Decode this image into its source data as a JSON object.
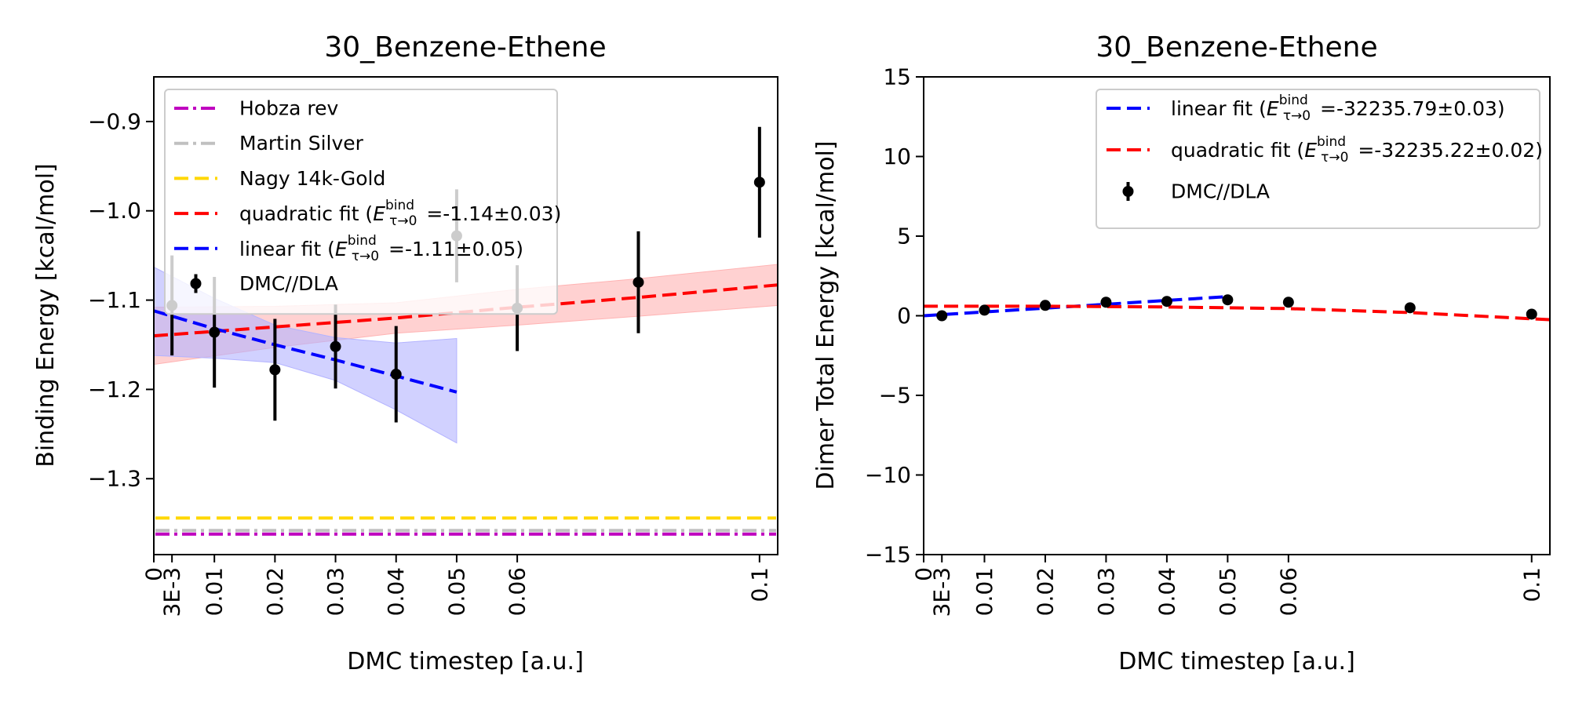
{
  "figure": {
    "background": "#ffffff"
  },
  "chart_data": [
    {
      "type": "scatter",
      "title": "30_Benzene-Ethene",
      "xlabel": "DMC timestep [a.u.]",
      "ylabel": "Binding Energy [kcal/mol]",
      "xlim": [
        0,
        0.103
      ],
      "ylim": [
        -1.385,
        -0.85
      ],
      "x_ticks": [
        0,
        0.003,
        0.01,
        0.02,
        0.03,
        0.04,
        0.05,
        0.06,
        0.1
      ],
      "x_tick_labels": [
        "0",
        "3E-3",
        "0.01",
        "0.02",
        "0.03",
        "0.04",
        "0.05",
        "0.06",
        "0.1"
      ],
      "y_ticks": [
        -1.3,
        -1.2,
        -1.1,
        -1.0,
        -0.9
      ],
      "y_tick_labels": [
        "−1.3",
        "−1.2",
        "−1.1",
        "−1.0",
        "−0.9"
      ],
      "grid": false,
      "legend_position": "upper-left",
      "series": [
        {
          "name": "DMC//DLA",
          "kind": "errorbar",
          "color": "#000000",
          "x": [
            0.003,
            0.01,
            0.02,
            0.03,
            0.04,
            0.05,
            0.06,
            0.08,
            0.1
          ],
          "y": [
            -1.106,
            -1.136,
            -1.178,
            -1.152,
            -1.183,
            -1.028,
            -1.109,
            -1.08,
            -0.968
          ],
          "err": [
            0.056,
            0.062,
            0.057,
            0.047,
            0.054,
            0.052,
            0.048,
            0.057,
            0.062
          ]
        },
        {
          "name": "quadratic fit ($E^{bind}_{τ→0}$ =-1.14±0.03)",
          "legend_prefix": "quadratic fit (",
          "legend_value": " =-1.14±0.03)",
          "kind": "fit",
          "color": "#ff0000",
          "x": [
            0,
            0.02,
            0.04,
            0.06,
            0.08,
            0.103
          ],
          "y": [
            -1.14,
            -1.13,
            -1.12,
            -1.108,
            -1.097,
            -1.083
          ],
          "band_lower": [
            -1.172,
            -1.153,
            -1.137,
            -1.128,
            -1.118,
            -1.106
          ],
          "band_upper": [
            -1.108,
            -1.107,
            -1.103,
            -1.088,
            -1.076,
            -1.06
          ],
          "band_color": "#ffb3b3"
        },
        {
          "name": "linear fit ($E^{bind}_{τ→0}$ =-1.11±0.05)",
          "legend_prefix": "linear fit (",
          "legend_value": " =-1.11±0.05)",
          "kind": "fit",
          "color": "#0000ff",
          "x": [
            0,
            0.01,
            0.02,
            0.03,
            0.04,
            0.05
          ],
          "y": [
            -1.112,
            -1.132,
            -1.15,
            -1.167,
            -1.185,
            -1.203
          ],
          "band_lower": [
            -1.162,
            -1.165,
            -1.17,
            -1.19,
            -1.223,
            -1.26
          ],
          "band_upper": [
            -1.063,
            -1.098,
            -1.128,
            -1.142,
            -1.148,
            -1.143
          ],
          "band_color": "#b3b3ff"
        },
        {
          "name": "Hobza rev",
          "kind": "hline",
          "y": -1.362,
          "color": "#bf00bf",
          "dash": "dashdot"
        },
        {
          "name": "Martin Silver",
          "kind": "hline",
          "y": -1.358,
          "color": "#c0c0c0",
          "dash": "dashdot"
        },
        {
          "name": "Nagy 14k-Gold",
          "kind": "hline",
          "y": -1.344,
          "color": "#ffd700",
          "dash": "dashed"
        }
      ],
      "legend_order": [
        "Hobza rev",
        "Martin Silver",
        "Nagy 14k-Gold",
        "quadratic fit ($E^{bind}_{τ→0}$ =-1.14±0.03)",
        "linear fit ($E^{bind}_{τ→0}$ =-1.11±0.05)",
        "DMC//DLA"
      ]
    },
    {
      "type": "scatter",
      "title": "30_Benzene-Ethene",
      "xlabel": "DMC timestep [a.u.]",
      "ylabel": "Dimer Total Energy [kcal/mol]",
      "xlim": [
        0,
        0.103
      ],
      "ylim": [
        -15,
        15
      ],
      "x_ticks": [
        0,
        0.003,
        0.01,
        0.02,
        0.03,
        0.04,
        0.05,
        0.06,
        0.1
      ],
      "x_tick_labels": [
        "0",
        "3E-3",
        "0.01",
        "0.02",
        "0.03",
        "0.04",
        "0.05",
        "0.06",
        "0.1"
      ],
      "y_ticks": [
        -15,
        -10,
        -5,
        0,
        5,
        10,
        15
      ],
      "y_tick_labels": [
        "−15",
        "−10",
        "−5",
        "0",
        "5",
        "10",
        "15"
      ],
      "grid": false,
      "legend_position": "upper-right",
      "series": [
        {
          "name": "DMC//DLA",
          "kind": "errorbar",
          "color": "#000000",
          "x": [
            0.003,
            0.01,
            0.02,
            0.03,
            0.04,
            0.05,
            0.06,
            0.08,
            0.1
          ],
          "y": [
            0.0,
            0.35,
            0.65,
            0.85,
            0.9,
            1.0,
            0.85,
            0.5,
            0.1
          ],
          "err": [
            0.06,
            0.06,
            0.06,
            0.05,
            0.05,
            0.05,
            0.05,
            0.06,
            0.06
          ]
        },
        {
          "name": "linear fit ($E^{bind}_{τ→0}$ =-32235.79±0.03)",
          "legend_prefix": "linear fit (",
          "legend_value": " =-32235.79±0.03)",
          "kind": "fit",
          "color": "#0000ff",
          "x": [
            0,
            0.05
          ],
          "y": [
            0.0,
            1.2
          ]
        },
        {
          "name": "quadratic fit ($E^{bind}_{τ→0}$ =-32235.22±0.02)",
          "legend_prefix": "quadratic fit (",
          "legend_value": " =-32235.22±0.02)",
          "kind": "fit",
          "color": "#ff0000",
          "x": [
            0,
            0.02,
            0.04,
            0.06,
            0.08,
            0.103
          ],
          "y": [
            0.6,
            0.6,
            0.55,
            0.45,
            0.2,
            -0.25
          ]
        }
      ],
      "legend_order": [
        "linear fit ($E^{bind}_{τ→0}$ =-32235.79±0.03)",
        "quadratic fit ($E^{bind}_{τ→0}$ =-32235.22±0.02)",
        "DMC//DLA"
      ]
    }
  ]
}
